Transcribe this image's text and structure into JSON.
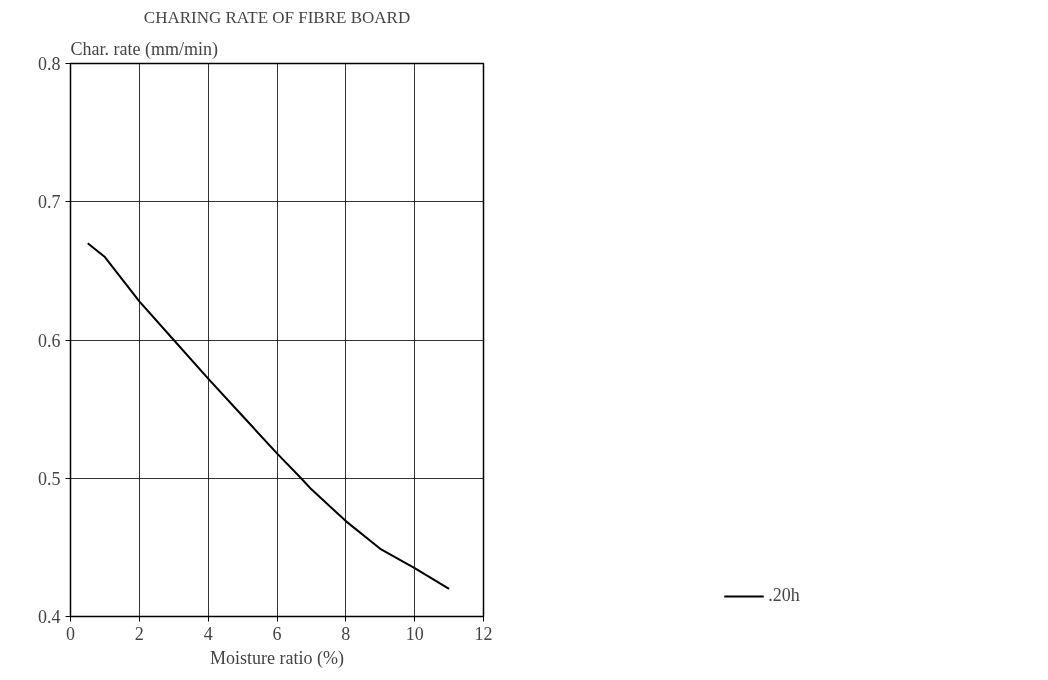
{
  "chart_data": {
    "type": "line",
    "title": "CHARING RATE OF FIBRE BOARD",
    "xlabel": "Moisture ratio (%)",
    "ylabel": "Char. rate (mm/min)",
    "x": [
      0.5,
      1,
      2,
      3,
      4,
      5,
      6,
      6.7,
      7,
      8,
      9,
      10,
      11
    ],
    "series": [
      {
        "name": ".20h",
        "color": "#000000",
        "values": [
          0.67,
          0.66,
          0.628,
          0.6,
          0.572,
          0.545,
          0.518,
          0.5,
          0.492,
          0.469,
          0.449,
          0.435,
          0.42
        ]
      }
    ],
    "xlim": [
      0,
      12
    ],
    "xticks": [
      0,
      2,
      4,
      6,
      8,
      10,
      12
    ],
    "ylim": [
      0.4,
      0.8
    ],
    "yticks": [
      0.4,
      0.5,
      0.6,
      0.7,
      0.8
    ],
    "grid": true,
    "legend": "bottom right",
    "marker": "none",
    "line_style": "solid"
  }
}
